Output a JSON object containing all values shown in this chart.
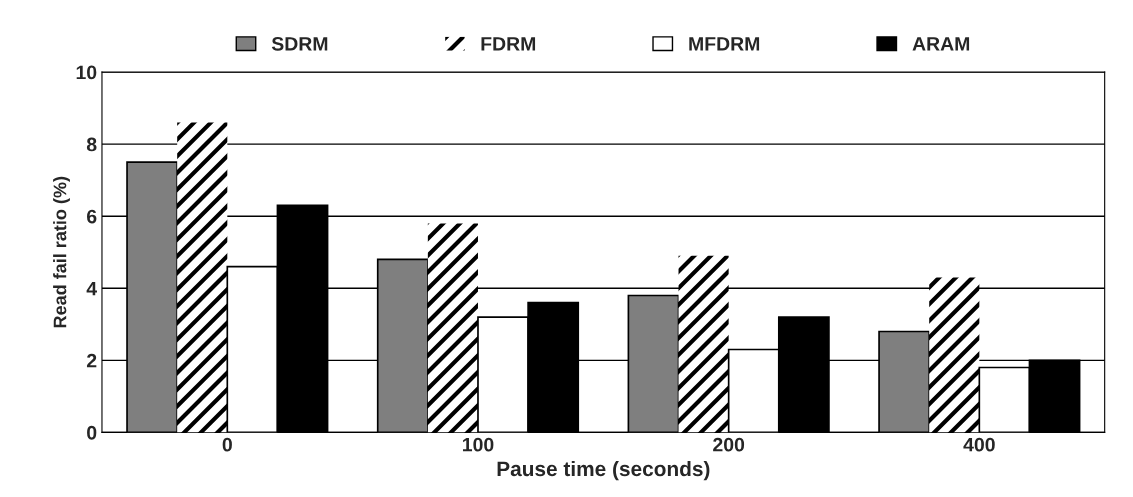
{
  "chart_data": {
    "type": "bar",
    "xlabel": "Pause time (seconds)",
    "ylabel": "Read fail ratio (%)",
    "categories": [
      "0",
      "100",
      "200",
      "400"
    ],
    "series": [
      {
        "name": "SDRM",
        "color": "#7f7f7f",
        "values": [
          7.5,
          4.8,
          3.8,
          2.8
        ]
      },
      {
        "name": "FDRM",
        "color": "#ffffff",
        "values": [
          8.6,
          5.8,
          4.9,
          4.3
        ]
      },
      {
        "name": "MFDRM",
        "color": "#ffffff",
        "values": [
          4.6,
          3.2,
          2.3,
          1.8
        ]
      },
      {
        "name": "ARAM",
        "color": "#000000",
        "values": [
          6.3,
          3.6,
          3.2,
          2.0
        ]
      }
    ],
    "ylim": [
      0,
      10
    ],
    "yticks": [
      0,
      2,
      4,
      6,
      8,
      10
    ],
    "grid": "y",
    "legend": "top"
  }
}
